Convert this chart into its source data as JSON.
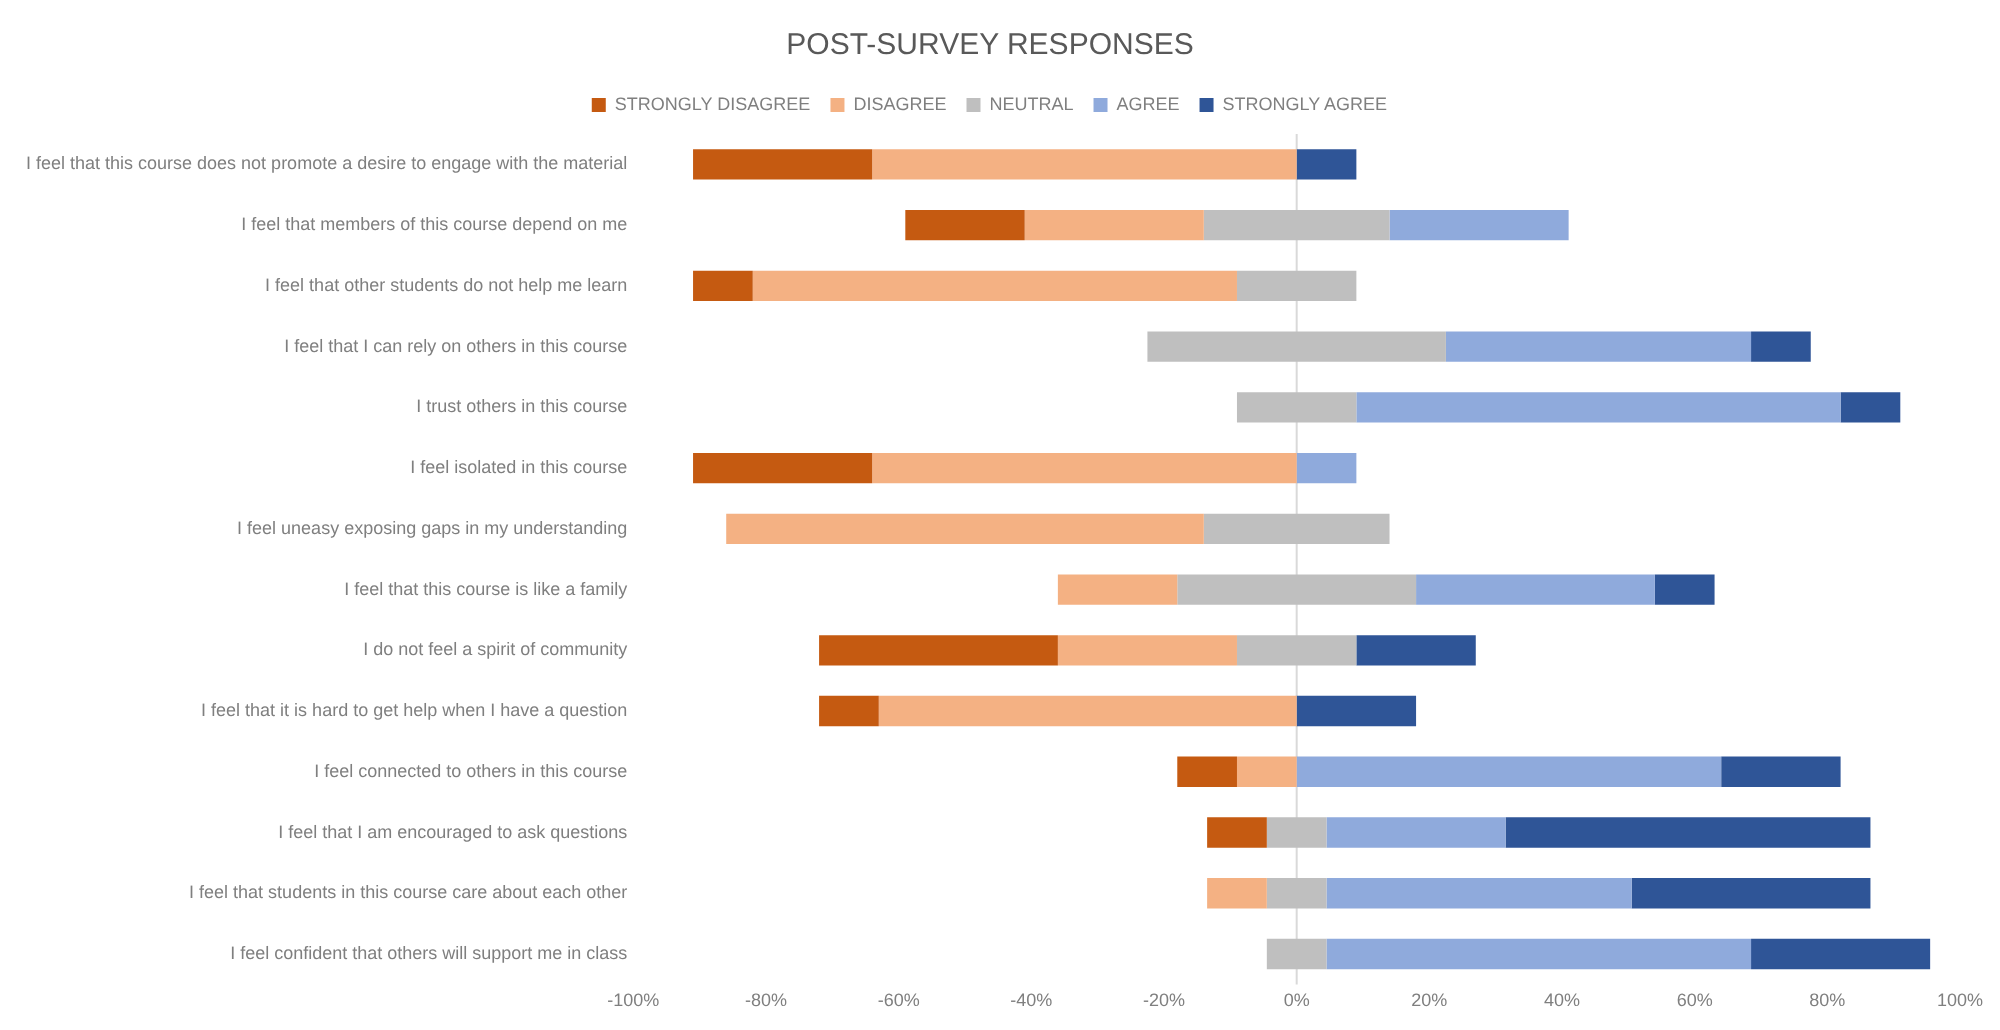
{
  "chart_data": {
    "type": "bar",
    "orientation": "horizontal",
    "title": "POST-SURVEY RESPONSES",
    "legend": "top",
    "categories": [
      "I feel that this course does not promote a desire to engage with the material",
      "I feel that members of this course depend on me",
      "I feel that other students do not help me learn",
      "I feel that I can rely on others in this course",
      "I trust others in this course",
      "I feel isolated in this course",
      "I feel uneasy exposing gaps in my understanding",
      "I feel that this course is like a family",
      "I do not feel a spirit of community",
      "I feel that it is hard to get help when I have a question",
      "I feel connected to others in this course",
      "I feel that I am encouraged to ask questions",
      "I feel that students in this course care about each other",
      "I feel confident that others will support me in class"
    ],
    "series": [
      {
        "name": "STRONGLY DISAGREE",
        "color": "#c55a11",
        "values": [
          27,
          18,
          9,
          null,
          null,
          27,
          null,
          null,
          36,
          9,
          9,
          9,
          null,
          null
        ],
        "base": [
          -91,
          -59,
          -91,
          null,
          null,
          -91,
          null,
          null,
          -72,
          -72,
          -18,
          -13.5,
          null,
          null
        ]
      },
      {
        "name": "DISAGREE",
        "color": "#f4b183",
        "values": [
          64,
          27,
          73,
          null,
          null,
          64,
          72,
          18,
          27,
          63,
          9,
          null,
          9,
          null
        ],
        "base": [
          -64,
          -41,
          -82,
          null,
          null,
          -64,
          -86,
          -36,
          -36,
          -63,
          -9,
          null,
          -13.5,
          null
        ]
      },
      {
        "name": "NEUTRAL",
        "color": "#bfbfbf",
        "values": [
          null,
          28,
          18,
          45,
          18,
          null,
          28,
          36,
          18,
          null,
          null,
          9,
          9,
          9
        ],
        "base": [
          null,
          -14,
          -9,
          -22.5,
          -9,
          null,
          -14,
          -18,
          -9,
          null,
          null,
          -4.5,
          -4.5,
          -4.5
        ]
      },
      {
        "name": "AGREE",
        "color": "#8faadc",
        "values": [
          null,
          27,
          null,
          46,
          73,
          9,
          null,
          36,
          null,
          null,
          64,
          27,
          46,
          64
        ],
        "base": [
          null,
          14,
          null,
          22.5,
          9,
          0,
          null,
          18,
          null,
          null,
          0,
          4.5,
          4.5,
          4.5
        ]
      },
      {
        "name": "STRONGLY AGREE",
        "color": "#2f5597",
        "values": [
          9,
          null,
          null,
          9,
          9,
          null,
          null,
          9,
          18,
          18,
          18,
          55,
          36,
          27
        ],
        "base": [
          0,
          null,
          null,
          68.5,
          82,
          null,
          null,
          54,
          9,
          0,
          64,
          31.5,
          50.5,
          68.5
        ]
      }
    ],
    "xlim": [
      -100,
      100
    ],
    "xticks": [
      {
        "value": -100,
        "label": "-100%"
      },
      {
        "value": -80,
        "label": "-80%"
      },
      {
        "value": -60,
        "label": "-60%"
      },
      {
        "value": -40,
        "label": "-40%"
      },
      {
        "value": -20,
        "label": "-20%"
      },
      {
        "value": 0,
        "label": "0%"
      },
      {
        "value": 20,
        "label": "20%"
      },
      {
        "value": 40,
        "label": "40%"
      },
      {
        "value": 60,
        "label": "60%"
      },
      {
        "value": 80,
        "label": "80%"
      },
      {
        "value": 100,
        "label": "100%"
      }
    ],
    "grid": false,
    "ref_lines": [
      {
        "axis": "x",
        "value": 0,
        "color": "#d9d9d9"
      }
    ]
  }
}
